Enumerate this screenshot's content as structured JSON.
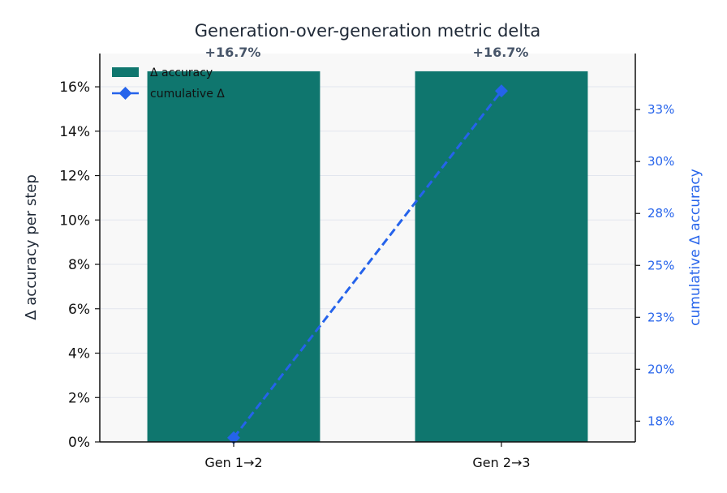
{
  "chart_data": {
    "type": "bar+line",
    "title": "Generation-over-generation metric delta",
    "categories": [
      "Gen 1→2",
      "Gen 2→3"
    ],
    "ylabel": "Δ accuracy per step",
    "ylabel_right": "cumulative Δ accuracy",
    "ylim": [
      0,
      17.5
    ],
    "y_ticks": [
      0,
      2,
      4,
      6,
      8,
      10,
      12,
      14,
      16
    ],
    "y_tick_labels": [
      "0%",
      "2%",
      "4%",
      "6%",
      "8%",
      "10%",
      "12%",
      "14%",
      "16%"
    ],
    "ylim_right": [
      16.5,
      35.2
    ],
    "y_right_ticks": [
      17.5,
      20,
      22.5,
      25,
      27.5,
      30,
      32.5
    ],
    "y_right_tick_labels": [
      "18%",
      "20%",
      "23%",
      "25%",
      "28%",
      "30%",
      "33%"
    ],
    "grid": true,
    "legend_position": "top-left",
    "series": [
      {
        "name": "Δ accuracy",
        "kind": "bar",
        "axis": "left",
        "color": "#0f766e",
        "values": [
          16.7,
          16.7
        ],
        "data_labels": [
          "+16.7%",
          "+16.7%"
        ]
      },
      {
        "name": "cumulative Δ",
        "kind": "line",
        "axis": "right",
        "color": "#2563eb",
        "line_style": "dashed",
        "marker": "diamond",
        "values": [
          16.7,
          33.4
        ]
      }
    ]
  }
}
